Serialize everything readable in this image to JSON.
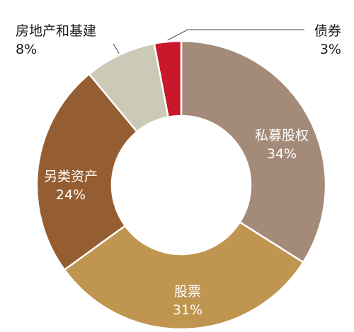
{
  "chart_data": {
    "type": "pie",
    "variant": "donut",
    "legend": "none",
    "slices": [
      {
        "label": "私募股权",
        "value": 34,
        "value_label": "34%",
        "color": "#a48a78"
      },
      {
        "label": "股票",
        "value": 31,
        "value_label": "31%",
        "color": "#bf9550"
      },
      {
        "label": "另类资产",
        "value": 24,
        "value_label": "24%",
        "color": "#955e32"
      },
      {
        "label": "房地产和基建",
        "value": 8,
        "value_label": "8%",
        "color": "#cbcab7"
      },
      {
        "label": "债券",
        "value": 3,
        "value_label": "3%",
        "color": "#c9182b"
      }
    ]
  }
}
